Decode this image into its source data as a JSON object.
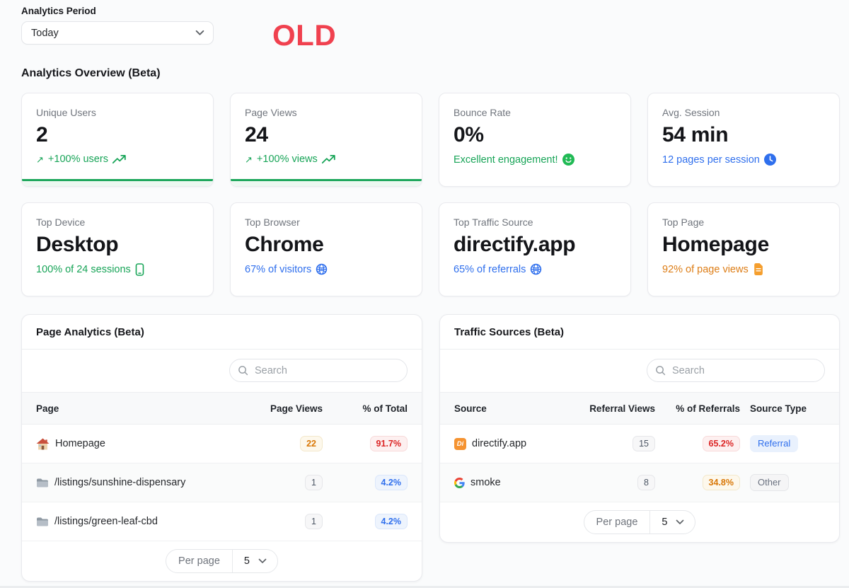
{
  "colors": {
    "green": "#17a457",
    "blue": "#2f6fed",
    "orange": "#dd7d16",
    "red_badge": "#dc2626",
    "amber_badge": "#d97706",
    "old_label": "#f0414f",
    "card_bar_green": "#1ea75c"
  },
  "period": {
    "label": "Analytics Period",
    "value": "Today"
  },
  "old_label": "OLD",
  "overview": {
    "title": "Analytics Overview (Beta)",
    "cards": [
      {
        "label": "Unique Users",
        "value": "2",
        "status": "+100% users",
        "status_color": "green",
        "leading_icon": "arrow-up-right-icon",
        "trailing_icon": "trending-up-icon",
        "highlight_bar": true
      },
      {
        "label": "Page Views",
        "value": "24",
        "status": "+100% views",
        "status_color": "green",
        "leading_icon": "arrow-up-right-icon",
        "trailing_icon": "trending-up-icon",
        "highlight_bar": true
      },
      {
        "label": "Bounce Rate",
        "value": "0%",
        "status": "Excellent engagement!",
        "status_color": "green",
        "trailing_icon": "smiley-icon",
        "highlight_bar": false
      },
      {
        "label": "Avg. Session",
        "value": "54 min",
        "status": "12 pages per session",
        "status_color": "blue",
        "trailing_icon": "clock-icon",
        "highlight_bar": false
      },
      {
        "label": "Top Device",
        "value": "Desktop",
        "status": "100% of 24 sessions",
        "status_color": "green",
        "trailing_icon": "mobile-phone-icon",
        "highlight_bar": false
      },
      {
        "label": "Top Browser",
        "value": "Chrome",
        "status": "67% of visitors",
        "status_color": "blue",
        "trailing_icon": "globe-icon",
        "highlight_bar": false
      },
      {
        "label": "Top Traffic Source",
        "value": "directify.app",
        "status": "65% of referrals",
        "status_color": "blue",
        "trailing_icon": "globe-icon",
        "highlight_bar": false
      },
      {
        "label": "Top Page",
        "value": "Homepage",
        "status": "92% of page views",
        "status_color": "orange",
        "trailing_icon": "document-icon",
        "highlight_bar": false
      }
    ]
  },
  "page_analytics": {
    "title": "Page Analytics (Beta)",
    "search_placeholder": "Search",
    "columns": [
      "Page",
      "Page Views",
      "% of Total"
    ],
    "rows": [
      {
        "icon": "house-icon",
        "page": "Homepage",
        "views": "22",
        "views_style": "amber",
        "pct": "91.7%",
        "pct_style": "red"
      },
      {
        "icon": "folder-icon",
        "page": "/listings/sunshine-dispensary",
        "views": "1",
        "views_style": "gray",
        "pct": "4.2%",
        "pct_style": "blue"
      },
      {
        "icon": "folder-icon",
        "page": "/listings/green-leaf-cbd",
        "views": "1",
        "views_style": "gray",
        "pct": "4.2%",
        "pct_style": "blue"
      }
    ],
    "per_page_label": "Per page",
    "per_page_value": "5"
  },
  "traffic_sources": {
    "title": "Traffic Sources (Beta)",
    "search_placeholder": "Search",
    "columns": [
      "Source",
      "Referral Views",
      "% of Referrals",
      "Source Type"
    ],
    "rows": [
      {
        "icon": "directify-favicon",
        "source": "directify.app",
        "views": "15",
        "pct": "65.2%",
        "pct_style": "red",
        "type": "Referral",
        "type_style": "referral"
      },
      {
        "icon": "google-favicon",
        "source": "smoke",
        "views": "8",
        "pct": "34.8%",
        "pct_style": "amber",
        "type": "Other",
        "type_style": "other"
      }
    ],
    "per_page_label": "Per page",
    "per_page_value": "5"
  }
}
